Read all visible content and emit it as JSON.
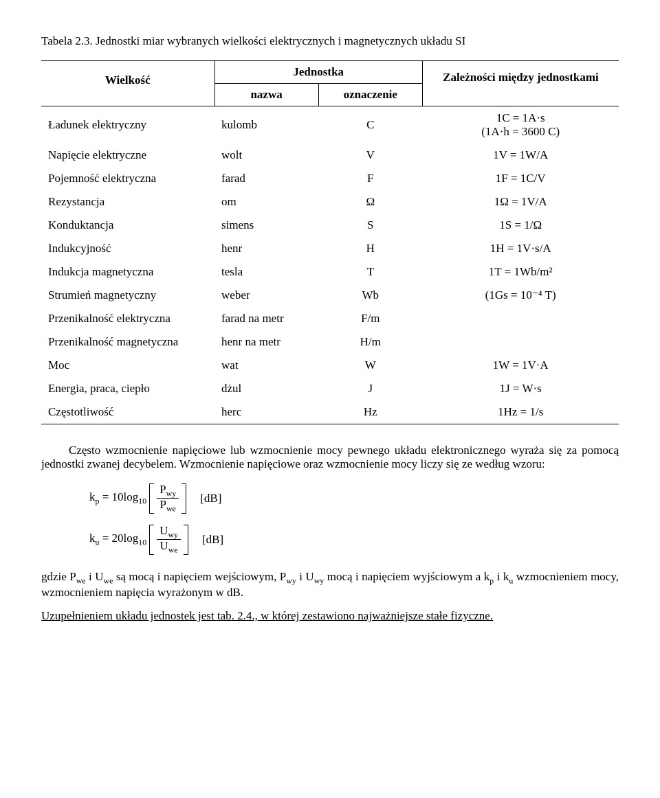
{
  "caption": "Tabela 2.3. Jednostki miar wybranych wielkości elektrycznych i magnetycznych układu SI",
  "headers": {
    "quantity": "Wielkość",
    "unit": "Jednostka",
    "name": "nazwa",
    "symbol": "oznaczenie",
    "relation": "Zależności między jednostkami"
  },
  "rows": [
    {
      "q": "Ładunek elektryczny",
      "n": "kulomb",
      "s": "C",
      "r": "1C = 1A·s\n(1A·h = 3600 C)"
    },
    {
      "q": "Napięcie elektryczne",
      "n": "wolt",
      "s": "V",
      "r": "1V = 1W/A"
    },
    {
      "q": "Pojemność elektryczna",
      "n": "farad",
      "s": "F",
      "r": "1F = 1C/V"
    },
    {
      "q": "Rezystancja",
      "n": "om",
      "s": "Ω",
      "r": "1Ω = 1V/A"
    },
    {
      "q": "Konduktancja",
      "n": "simens",
      "s": "S",
      "r": "1S = 1/Ω"
    },
    {
      "q": "Indukcyjność",
      "n": "henr",
      "s": "H",
      "r": "1H = 1V·s/A"
    },
    {
      "q": "Indukcja magnetyczna",
      "n": "tesla",
      "s": "T",
      "r": "1T = 1Wb/m²"
    },
    {
      "q": "Strumień magnetyczny",
      "n": "weber",
      "s": "Wb",
      "r": "(1Gs = 10⁻⁴ T)"
    },
    {
      "q": "Przenikalność elektryczna",
      "n": "farad na metr",
      "s": "F/m",
      "r": ""
    },
    {
      "q": "Przenikalność magnetyczna",
      "n": "henr na metr",
      "s": "H/m",
      "r": ""
    },
    {
      "q": "Moc",
      "n": "wat",
      "s": "W",
      "r": "1W = 1V·A"
    },
    {
      "q": "Energia, praca, ciepło",
      "n": "dżul",
      "s": "J",
      "r": "1J = W·s"
    },
    {
      "q": "Częstotliwość",
      "n": "herc",
      "s": "Hz",
      "r": "1Hz = 1/s"
    }
  ],
  "para1": "Często wzmocnienie napięciowe lub wzmocnienie mocy pewnego układu elektronicznego wyraża się za pomocą jednostki zwanej decybelem. Wzmocnienie napięciowe oraz wzmocnienie mocy liczy się ze według wzoru:",
  "formula1": {
    "k": "k",
    "ksub": "p",
    "coef": "10",
    "log": "log",
    "logsub": "10",
    "num": "P",
    "numsub": "wy",
    "den": "P",
    "densub": "we",
    "unit": "dB"
  },
  "formula2": {
    "k": "k",
    "ksub": "u",
    "coef": "20",
    "log": "log",
    "logsub": "10",
    "num": "U",
    "numsub": "wy",
    "den": "U",
    "densub": "we",
    "unit": "dB"
  },
  "para2_pre": "gdzie P",
  "para2_we": "we",
  "para2_a": " i U",
  "para2_b": " są mocą i napięciem wejściowym, P",
  "para2_wy": "wy",
  "para2_c": " i U",
  "para2_d": " mocą i napięciem wyjściowym a k",
  "para2_p": "p",
  "para2_e": " i k",
  "para2_u": "u",
  "para2_f": " wzmocnieniem mocy, wzmocnieniem napięcia wyrażonym w dB.",
  "para3": "Uzupełnieniem układu jednostek jest tab. 2.4., w której zestawiono najważniejsze stałe fizyczne."
}
